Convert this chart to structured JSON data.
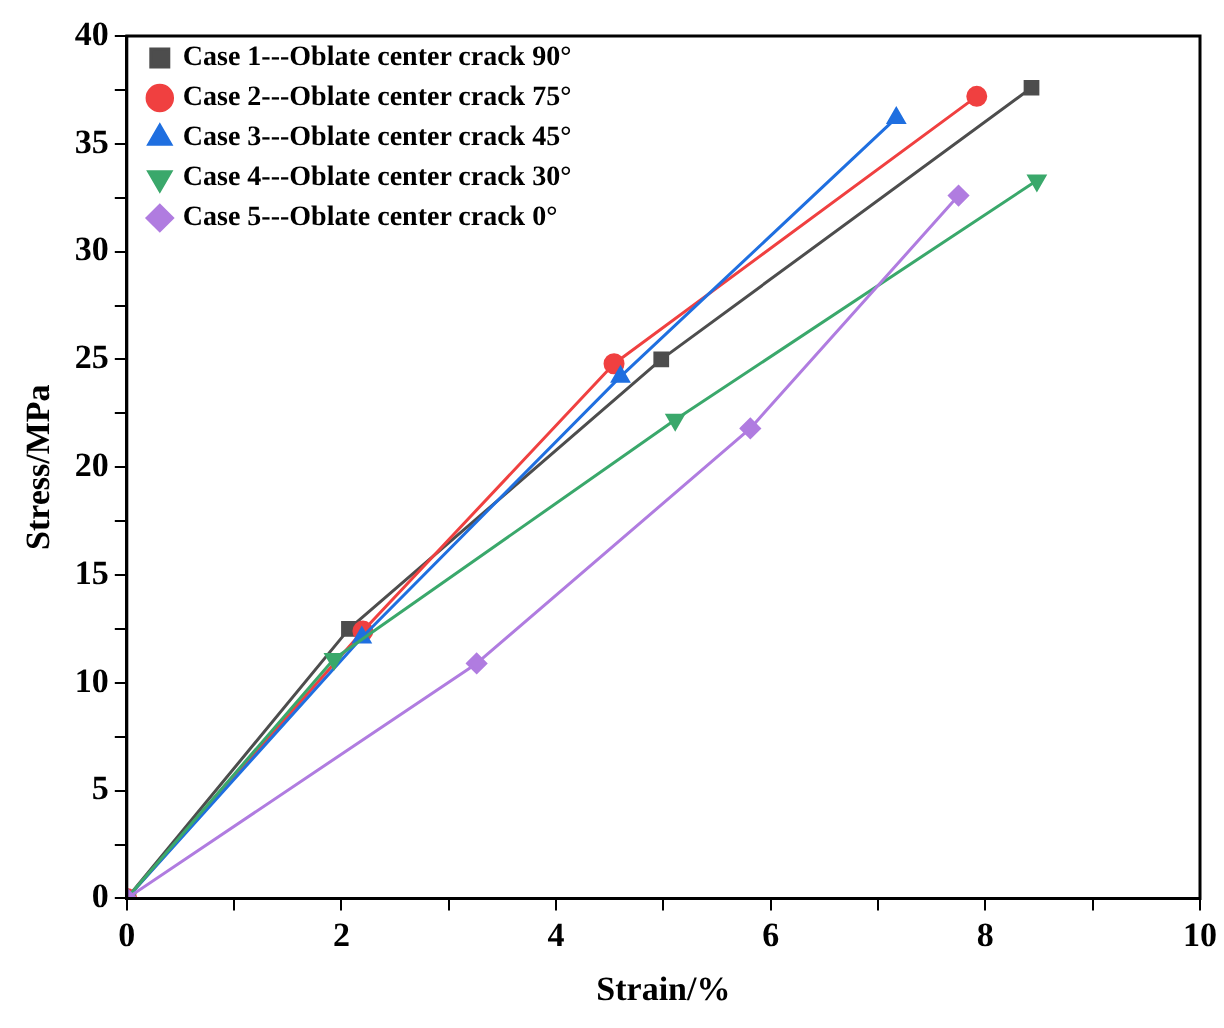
{
  "chart_data": {
    "type": "line",
    "xlabel": "Strain/%",
    "ylabel": "Stress/MPa",
    "xlim": [
      0,
      10
    ],
    "ylim": [
      0,
      40
    ],
    "xticks": [
      0,
      {
        "value": 1,
        "label": null
      },
      2,
      {
        "value": 3,
        "label": null
      },
      4,
      {
        "value": 5,
        "label": null
      },
      6,
      {
        "value": 7,
        "label": null
      },
      8,
      {
        "value": 9,
        "label": null
      },
      10
    ],
    "yticks": [
      0,
      {
        "value": 2.5,
        "label": null
      },
      5,
      {
        "value": 7.5,
        "label": null
      },
      10,
      {
        "value": 12.5,
        "label": null
      },
      15,
      {
        "value": 17.5,
        "label": null
      },
      20,
      {
        "value": 22.5,
        "label": null
      },
      25,
      {
        "value": 27.5,
        "label": null
      },
      30,
      {
        "value": 32.5,
        "label": null
      },
      35,
      {
        "value": 37.5,
        "label": null
      },
      40
    ],
    "grid": false,
    "legend": "top left",
    "line_style": "solid",
    "series": [
      {
        "name": "Case 1---Oblate center crack 90°",
        "color": "#4d4d4d",
        "marker": "square",
        "x": [
          0,
          2.07,
          4.98,
          8.43
        ],
        "values": [
          0,
          12.5,
          25.0,
          37.6
        ]
      },
      {
        "name": "Case 2---Oblate center crack 75°",
        "color": "#f04040",
        "marker": "circle",
        "x": [
          0,
          2.2,
          4.54,
          7.92
        ],
        "values": [
          0,
          12.4,
          24.8,
          37.2
        ]
      },
      {
        "name": "Case 3---Oblate center crack 45°",
        "color": "#1f6fe0",
        "marker": "triangle",
        "x": [
          0,
          2.19,
          4.6,
          7.17
        ],
        "values": [
          0,
          12.1,
          24.2,
          36.2
        ]
      },
      {
        "name": "Case 4---Oblate center crack 30°",
        "color": "#3aa86b",
        "marker": "triangle-down",
        "x": [
          0,
          1.93,
          5.11,
          8.48
        ],
        "values": [
          0,
          11.1,
          22.2,
          33.3
        ]
      },
      {
        "name": "Case 5---Oblate center crack 0°",
        "color": "#b07ce0",
        "marker": "diamond",
        "x": [
          0,
          3.26,
          5.81,
          7.75
        ],
        "values": [
          0,
          10.9,
          21.8,
          32.6
        ]
      }
    ]
  }
}
